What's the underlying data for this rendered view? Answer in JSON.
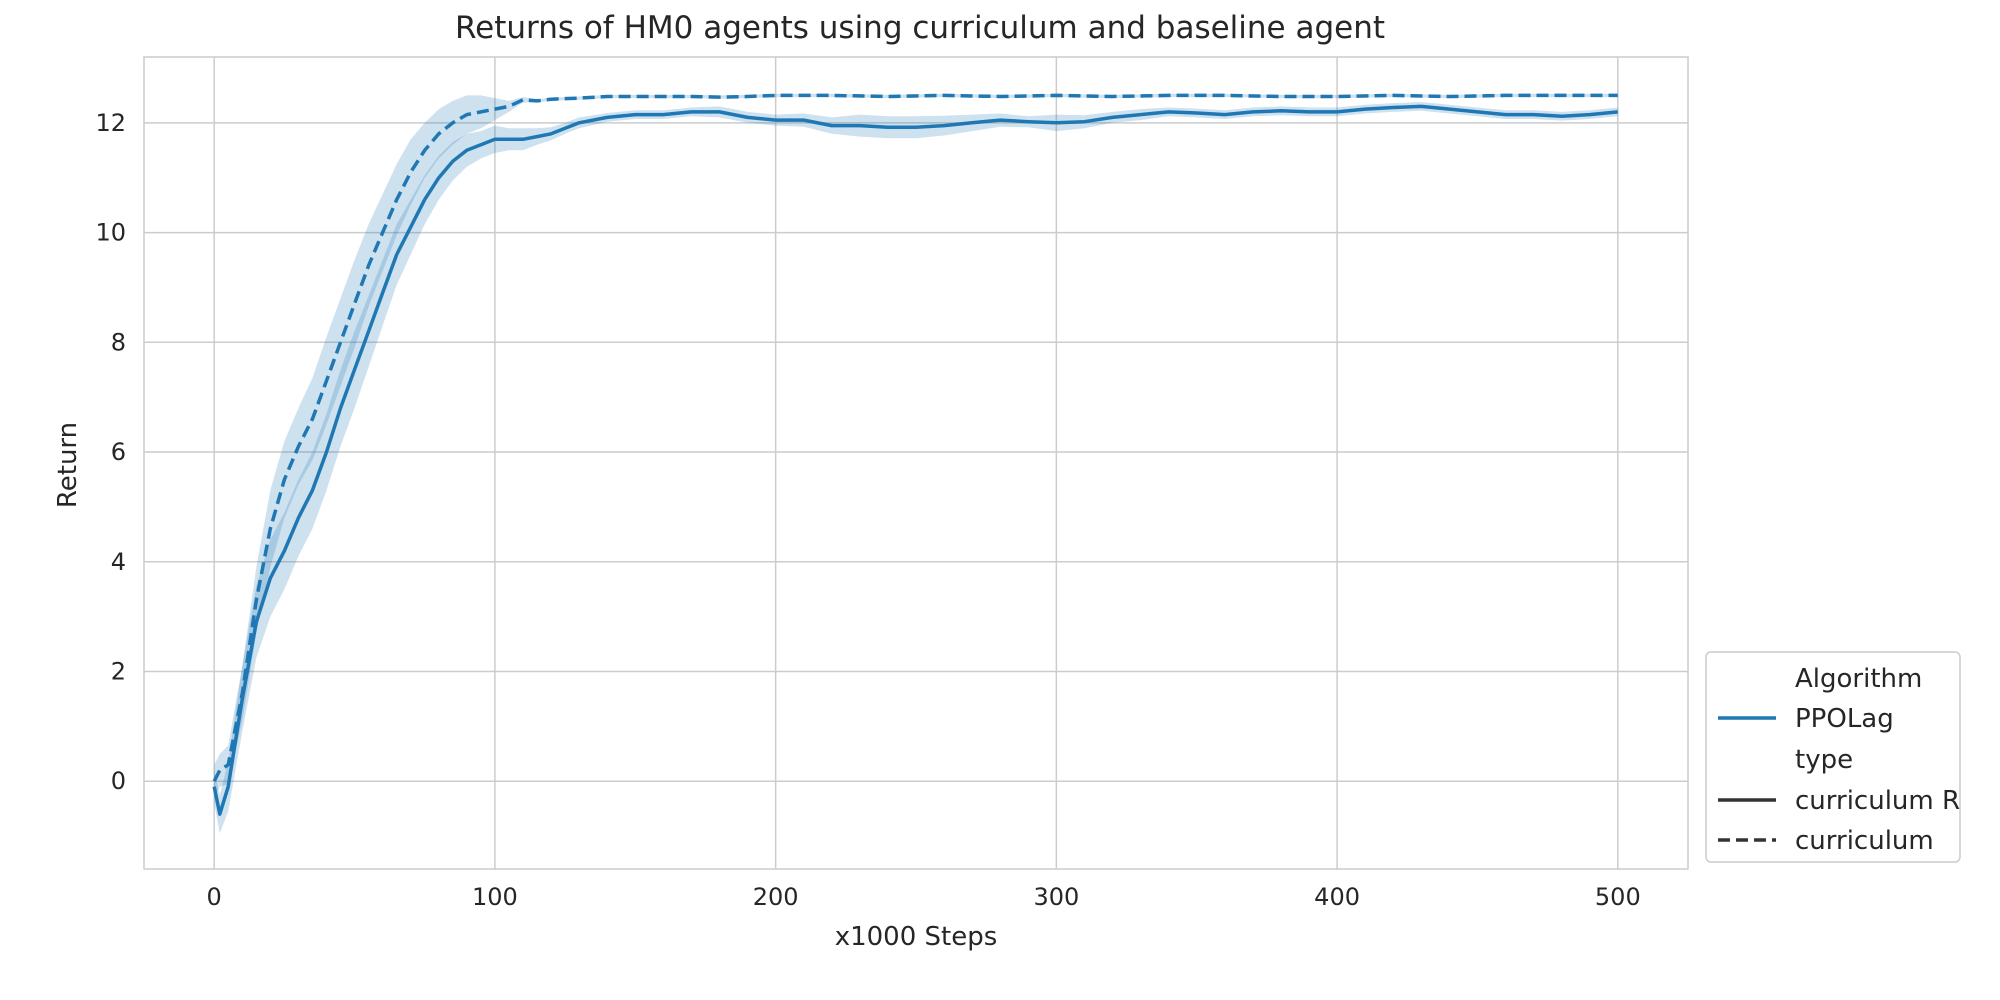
{
  "chart_data": {
    "type": "line",
    "title": "Returns of HM0 agents using curriculum and baseline agent",
    "xlabel": "x1000 Steps",
    "ylabel": "Return",
    "xlim": [
      -25,
      525
    ],
    "ylim": [
      -1.6,
      13.2
    ],
    "xticks": [
      0,
      100,
      200,
      300,
      400,
      500
    ],
    "yticks": [
      0,
      2,
      4,
      6,
      8,
      10,
      12
    ],
    "grid": true,
    "legend": {
      "placement": "lower-right-outside",
      "entries": [
        {
          "label": "Algorithm",
          "kind": "header"
        },
        {
          "label": "PPOLag",
          "kind": "line",
          "color": "#1f77b4",
          "dash": "solid"
        },
        {
          "label": "type",
          "kind": "header"
        },
        {
          "label": "curriculum R",
          "kind": "line",
          "color": "#333333",
          "dash": "solid"
        },
        {
          "label": "curriculum",
          "kind": "line",
          "color": "#333333",
          "dash": "dashed"
        }
      ]
    },
    "series": [
      {
        "name": "curriculum R",
        "color": "#1f77b4",
        "dash": "solid",
        "x": [
          0,
          2,
          5,
          10,
          15,
          20,
          25,
          30,
          35,
          40,
          45,
          50,
          55,
          60,
          65,
          70,
          75,
          80,
          85,
          90,
          95,
          100,
          105,
          110,
          115,
          120,
          125,
          130,
          140,
          150,
          160,
          170,
          180,
          190,
          200,
          210,
          220,
          230,
          240,
          250,
          260,
          270,
          280,
          290,
          300,
          310,
          320,
          330,
          340,
          350,
          360,
          370,
          380,
          390,
          400,
          410,
          420,
          430,
          440,
          450,
          460,
          470,
          480,
          490,
          500
        ],
        "y": [
          -0.1,
          -0.6,
          -0.1,
          1.5,
          2.9,
          3.7,
          4.2,
          4.8,
          5.3,
          6.0,
          6.8,
          7.5,
          8.2,
          8.9,
          9.6,
          10.1,
          10.6,
          11.0,
          11.3,
          11.5,
          11.6,
          11.7,
          11.7,
          11.7,
          11.75,
          11.8,
          11.9,
          12.0,
          12.1,
          12.15,
          12.15,
          12.2,
          12.2,
          12.1,
          12.05,
          12.05,
          11.95,
          11.95,
          11.92,
          11.92,
          11.95,
          12.0,
          12.05,
          12.02,
          12.0,
          12.02,
          12.1,
          12.15,
          12.2,
          12.18,
          12.15,
          12.2,
          12.22,
          12.2,
          12.2,
          12.25,
          12.28,
          12.3,
          12.25,
          12.2,
          12.15,
          12.15,
          12.12,
          12.15,
          12.2
        ],
        "band": [
          0.3,
          0.35,
          0.45,
          0.6,
          0.65,
          0.7,
          0.7,
          0.7,
          0.7,
          0.7,
          0.7,
          0.7,
          0.65,
          0.6,
          0.55,
          0.5,
          0.45,
          0.4,
          0.35,
          0.3,
          0.25,
          0.25,
          0.2,
          0.2,
          0.15,
          0.12,
          0.1,
          0.1,
          0.08,
          0.08,
          0.08,
          0.08,
          0.1,
          0.1,
          0.1,
          0.12,
          0.15,
          0.2,
          0.2,
          0.2,
          0.18,
          0.15,
          0.12,
          0.1,
          0.15,
          0.12,
          0.1,
          0.1,
          0.08,
          0.08,
          0.08,
          0.08,
          0.08,
          0.08,
          0.08,
          0.08,
          0.08,
          0.08,
          0.08,
          0.08,
          0.08,
          0.08,
          0.08,
          0.08,
          0.08
        ]
      },
      {
        "name": "curriculum",
        "color": "#1f77b4",
        "dash": "dashed",
        "x": [
          0,
          2,
          5,
          10,
          15,
          20,
          25,
          30,
          35,
          40,
          45,
          50,
          55,
          60,
          65,
          70,
          75,
          80,
          85,
          90,
          95,
          100,
          105,
          110,
          115,
          120,
          130,
          140,
          150,
          160,
          170,
          180,
          190,
          200,
          220,
          240,
          260,
          280,
          300,
          320,
          340,
          360,
          380,
          400,
          420,
          440,
          460,
          480,
          500
        ],
        "y": [
          0.0,
          0.2,
          0.3,
          1.6,
          3.3,
          4.6,
          5.5,
          6.1,
          6.6,
          7.3,
          8.0,
          8.7,
          9.4,
          10.0,
          10.6,
          11.1,
          11.5,
          11.8,
          12.0,
          12.15,
          12.2,
          12.25,
          12.3,
          12.42,
          12.4,
          12.43,
          12.45,
          12.48,
          12.48,
          12.48,
          12.48,
          12.47,
          12.48,
          12.5,
          12.5,
          12.48,
          12.5,
          12.48,
          12.5,
          12.48,
          12.5,
          12.5,
          12.48,
          12.48,
          12.5,
          12.48,
          12.5,
          12.5,
          12.5
        ],
        "band": [
          0.3,
          0.3,
          0.35,
          0.5,
          0.6,
          0.7,
          0.7,
          0.7,
          0.75,
          0.8,
          0.8,
          0.8,
          0.75,
          0.7,
          0.65,
          0.6,
          0.5,
          0.45,
          0.4,
          0.35,
          0.3,
          0.2,
          0.1,
          0.05,
          0.03,
          0.03,
          0.03,
          0.03,
          0.03,
          0.03,
          0.03,
          0.03,
          0.03,
          0.03,
          0.03,
          0.03,
          0.03,
          0.03,
          0.03,
          0.03,
          0.03,
          0.03,
          0.03,
          0.03,
          0.03,
          0.03,
          0.03,
          0.03,
          0.03
        ]
      }
    ]
  }
}
